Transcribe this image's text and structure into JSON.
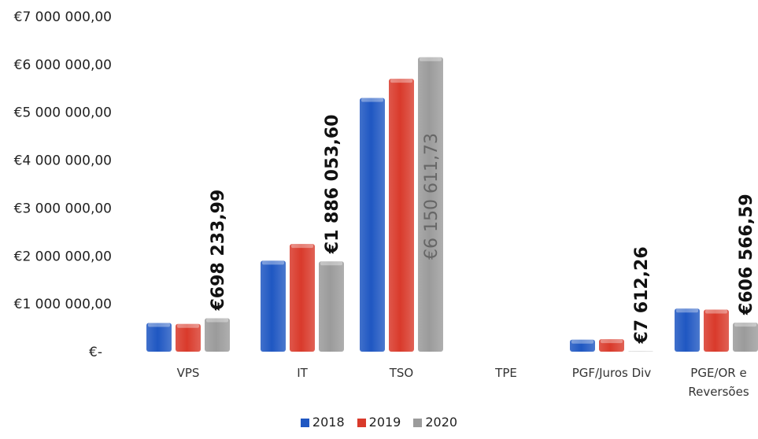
{
  "chart_data": {
    "type": "bar",
    "categories": [
      "VPS",
      "IT",
      "TSO",
      "TPE",
      "PGF/Juros Div",
      "PGE/OR e Reversões"
    ],
    "series": [
      {
        "name": "2018",
        "color": "#1f57c2",
        "values": [
          600000,
          1900000,
          5300000,
          0,
          250000,
          900000
        ]
      },
      {
        "name": "2019",
        "color": "#d93a2b",
        "values": [
          580000,
          2250000,
          5700000,
          0,
          260000,
          880000
        ]
      },
      {
        "name": "2020",
        "color": "#9b9b9b",
        "values": [
          698233.99,
          1886053.6,
          6150611.73,
          0,
          7612.26,
          606566.59
        ]
      }
    ],
    "data_labels": [
      "€698 233,99",
      "€1 886 053,60",
      "€6 150 611,73",
      "",
      "€7 612,26",
      "€606 566,59"
    ],
    "yticks": [
      "€-",
      "€1 000 000,00",
      "€2 000 000,00",
      "€3 000 000,00",
      "€4 000 000,00",
      "€5 000 000,00",
      "€6 000 000,00",
      "€7 000 000,00"
    ],
    "ylim": [
      0,
      7000000
    ],
    "grid": false,
    "legend_position": "bottom"
  }
}
